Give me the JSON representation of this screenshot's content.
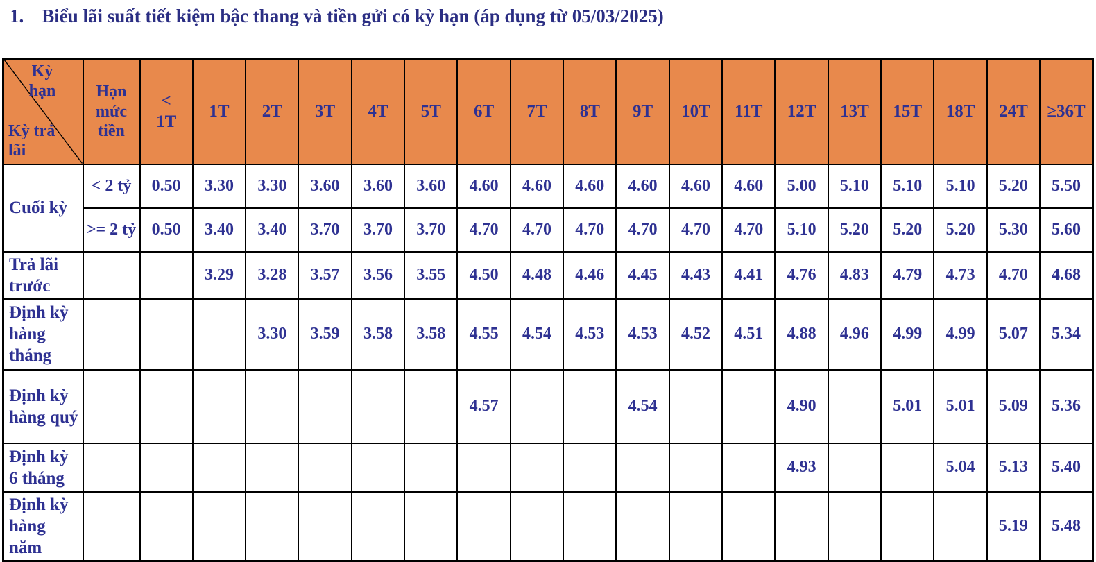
{
  "colors": {
    "header_bg": "#E8894C",
    "border": "#000000",
    "table_text": "#2E3192",
    "title_text": "#2B2E83"
  },
  "header": {
    "list_number": "1.",
    "title": "Biểu lãi suất tiết kiệm bậc thang và tiền gửi có kỳ hạn (áp dụng từ 05/03/2025)"
  },
  "table": {
    "corner": {
      "top_label": "Kỳ hạn",
      "bottom_label": "Kỳ trả lãi"
    },
    "limit_header": "Hạn mức tiền",
    "term_columns": [
      "< 1T",
      "1T",
      "2T",
      "3T",
      "4T",
      "5T",
      "6T",
      "7T",
      "8T",
      "9T",
      "10T",
      "11T",
      "12T",
      "13T",
      "15T",
      "18T",
      "24T",
      "≥36T"
    ],
    "rows": [
      {
        "label": "Cuối kỳ",
        "sub_rows": [
          {
            "limit": "< 2 tỷ",
            "values": [
              "0.50",
              "3.30",
              "3.30",
              "3.60",
              "3.60",
              "3.60",
              "4.60",
              "4.60",
              "4.60",
              "4.60",
              "4.60",
              "4.60",
              "5.00",
              "5.10",
              "5.10",
              "5.10",
              "5.20",
              "5.50"
            ]
          },
          {
            "limit": ">= 2 tỷ",
            "values": [
              "0.50",
              "3.40",
              "3.40",
              "3.70",
              "3.70",
              "3.70",
              "4.70",
              "4.70",
              "4.70",
              "4.70",
              "4.70",
              "4.70",
              "5.10",
              "5.20",
              "5.20",
              "5.20",
              "5.30",
              "5.60"
            ]
          }
        ]
      },
      {
        "label": "Trả lãi trước",
        "limit": "",
        "values": [
          "",
          "3.29",
          "3.28",
          "3.57",
          "3.56",
          "3.55",
          "4.50",
          "4.48",
          "4.46",
          "4.45",
          "4.43",
          "4.41",
          "4.76",
          "4.83",
          "4.79",
          "4.73",
          "4.70",
          "4.68"
        ]
      },
      {
        "label": "Định kỳ hàng tháng",
        "limit": "",
        "values": [
          "",
          "",
          "3.30",
          "3.59",
          "3.58",
          "3.58",
          "4.55",
          "4.54",
          "4.53",
          "4.53",
          "4.52",
          "4.51",
          "4.88",
          "4.96",
          "4.99",
          "4.99",
          "5.07",
          "5.34"
        ]
      },
      {
        "label": "Định kỳ hàng quý",
        "limit": "",
        "values": [
          "",
          "",
          "",
          "",
          "",
          "",
          "4.57",
          "",
          "",
          "4.54",
          "",
          "",
          "4.90",
          "",
          "5.01",
          "5.01",
          "5.09",
          "5.36"
        ]
      },
      {
        "label": "Định kỳ 6 tháng",
        "limit": "",
        "values": [
          "",
          "",
          "",
          "",
          "",
          "",
          "",
          "",
          "",
          "",
          "",
          "",
          "4.93",
          "",
          "",
          "5.04",
          "5.13",
          "5.40"
        ]
      },
      {
        "label": "Định kỳ hàng năm",
        "limit": "",
        "values": [
          "",
          "",
          "",
          "",
          "",
          "",
          "",
          "",
          "",
          "",
          "",
          "",
          "",
          "",
          "",
          "",
          "5.19",
          "5.48"
        ]
      }
    ]
  }
}
